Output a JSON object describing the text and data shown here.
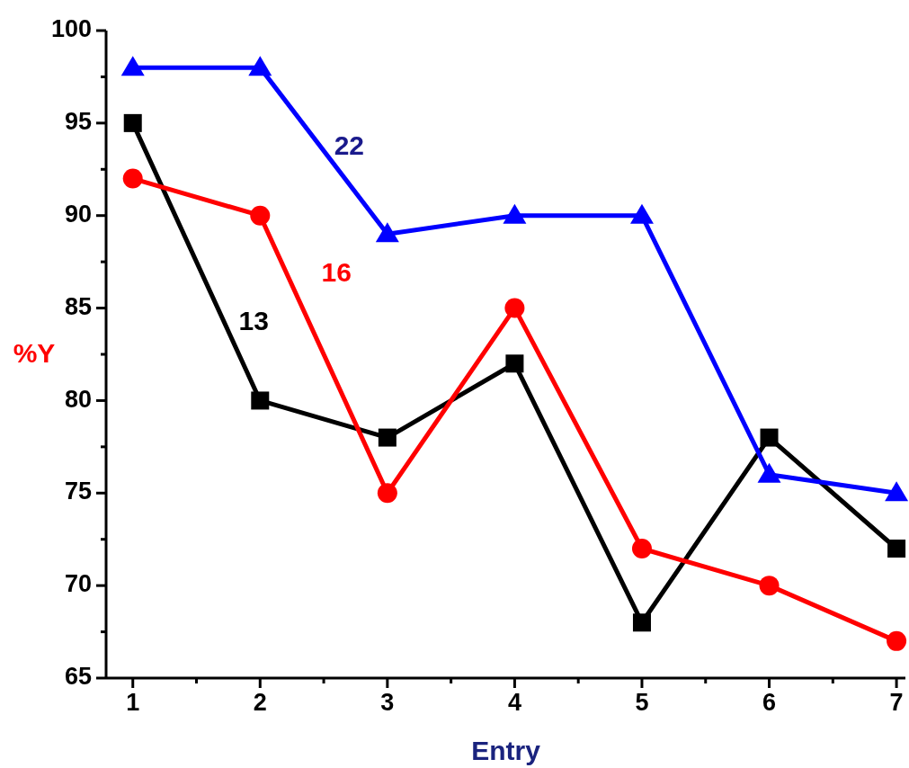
{
  "chart_data": {
    "type": "line",
    "xlabel": "Entry",
    "ylabel": "%Y",
    "x": [
      1,
      2,
      3,
      4,
      5,
      6,
      7
    ],
    "xlim": [
      0.79,
      7.07
    ],
    "xticks": [
      1,
      {
        "value": 1.5,
        "label": null
      },
      2,
      {
        "value": 2.5,
        "label": null
      },
      3,
      {
        "value": 3.5,
        "label": null
      },
      4,
      {
        "value": 4.5,
        "label": null
      },
      5,
      {
        "value": 5.5,
        "label": null
      },
      6,
      {
        "value": 6.5,
        "label": null
      },
      7
    ],
    "ylim": [
      65,
      100
    ],
    "yticks": [
      65,
      {
        "value": 67.5,
        "label": null
      },
      70,
      {
        "value": 72.5,
        "label": null
      },
      75,
      {
        "value": 77.5,
        "label": null
      },
      80,
      {
        "value": 82.5,
        "label": null
      },
      85,
      {
        "value": 87.5,
        "label": null
      },
      90,
      {
        "value": 92.5,
        "label": null
      },
      95,
      {
        "value": 97.5,
        "label": null
      },
      100
    ],
    "grid": false,
    "line_style": "solid",
    "series": [
      {
        "name": "13",
        "color": "#000000",
        "marker": "square",
        "values": [
          95,
          80,
          78,
          82,
          68,
          78,
          72
        ]
      },
      {
        "name": "16",
        "color": "#ff0000",
        "marker": "circle",
        "values": [
          92,
          90,
          75,
          85,
          72,
          70,
          67
        ]
      },
      {
        "name": "22",
        "color": "#0000ff",
        "marker": "triangle",
        "values": [
          98,
          98,
          89,
          90,
          90,
          76,
          75
        ]
      }
    ]
  }
}
